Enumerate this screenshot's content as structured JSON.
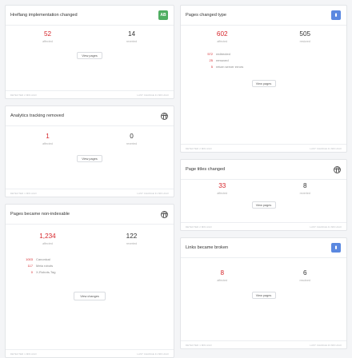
{
  "left": [
    {
      "title": "Hreflang implementation changed",
      "icon": "ab-test-icon",
      "badge_text": "AB",
      "metrics": [
        {
          "value": "52",
          "label": "affected"
        },
        {
          "value": "14",
          "label": "reverted"
        }
      ],
      "button": "View pages",
      "detected": "DETECTED 2 MIN AGO",
      "last_change": "LAST CHANGE 41 MIN AGO"
    },
    {
      "title": "Analytics tracking removed",
      "icon": "globe-icon",
      "metrics": [
        {
          "value": "1",
          "label": "affected"
        },
        {
          "value": "0",
          "label": "reverted"
        }
      ],
      "button": "View pages",
      "detected": "DETECTED 1 MIN AGO",
      "last_change": "LAST CHANGE 31 MIN AGO"
    },
    {
      "title": "Pages became non-indexable",
      "icon": "globe-icon",
      "metrics": [
        {
          "value": "1,234",
          "label": "affected"
        },
        {
          "value": "122",
          "label": "reverted"
        }
      ],
      "subrows": [
        {
          "num": "1003",
          "label": "Canonical"
        },
        {
          "num": "117",
          "label": "Meta robots"
        },
        {
          "num": "0",
          "label": "X-Robots-Tag"
        }
      ],
      "button": "View changes",
      "detected": "DETECTED 1 MIN AGO",
      "last_change": "LAST CHANGE 41 MIN AGO"
    }
  ],
  "right": [
    {
      "title": "Pages changed type",
      "icon": "document-icon",
      "metrics": [
        {
          "value": "602",
          "label": "affected"
        },
        {
          "value": "505",
          "label": "restored"
        }
      ],
      "subrows": [
        {
          "num": "572",
          "label": "redirected"
        },
        {
          "num": "25",
          "label": "removed"
        },
        {
          "num": "5",
          "label": "return server errors"
        }
      ],
      "button": "View pages",
      "detected": "DETECTED 2 MIN AGO",
      "last_change": "LAST CHANGE 41 MIN AGO"
    },
    {
      "title": "Page titles changed",
      "icon": "globe-icon",
      "metrics": [
        {
          "value": "33",
          "label": "affected"
        },
        {
          "value": "8",
          "label": "reverted"
        }
      ],
      "button": "View pages",
      "detected": "DETECTED 2 MIN AGO",
      "last_change": "LAST CHANGE 41 MIN AGO"
    },
    {
      "title": "Links became broken",
      "icon": "document-icon",
      "metrics": [
        {
          "value": "8",
          "label": "affected"
        },
        {
          "value": "6",
          "label": "resolved"
        }
      ],
      "button": "View pages",
      "detected": "DETECTED 1 MIN AGO",
      "last_change": "LAST CHANGE 23 MIN AGO"
    }
  ],
  "colors": {
    "accent_red": "#d6262b",
    "badge_green": "#4fae61",
    "badge_blue": "#5a88e0"
  }
}
